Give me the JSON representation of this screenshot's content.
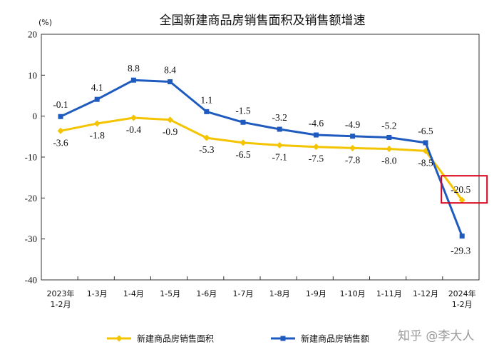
{
  "chart_data": {
    "type": "line",
    "title": "全国新建商品房销售面积及销售额增速",
    "unit": "(%)",
    "ylim": [
      -40,
      20
    ],
    "yticks": [
      20,
      10,
      0,
      -10,
      -20,
      -30,
      -40
    ],
    "categories": [
      [
        "2023年",
        "1-2月"
      ],
      [
        "1-3月"
      ],
      [
        "1-4月"
      ],
      [
        "1-5月"
      ],
      [
        "1-6月"
      ],
      [
        "1-7月"
      ],
      [
        "1-8月"
      ],
      [
        "1-9月"
      ],
      [
        "1-10月"
      ],
      [
        "1-11月"
      ],
      [
        "1-12月"
      ],
      [
        "2024年",
        "1-2月"
      ]
    ],
    "series": [
      {
        "name": "新建商品房销售面积",
        "color": "#f5c400",
        "marker": "diamond",
        "values": [
          -3.6,
          -1.8,
          -0.4,
          -0.9,
          -5.3,
          -6.5,
          -7.1,
          -7.5,
          -7.8,
          -8.0,
          -8.5,
          -20.5
        ],
        "labels": [
          "-3.6",
          "-1.8",
          "-0.4",
          "-0.9",
          "-5.3",
          "-6.5",
          "-7.1",
          "-7.5",
          "-7.8",
          "-8.0",
          "-8.5",
          "-20.5"
        ]
      },
      {
        "name": "新建商品房销售额",
        "color": "#1f5bbf",
        "marker": "square",
        "values": [
          -0.1,
          4.1,
          8.8,
          8.4,
          1.1,
          -1.5,
          -3.2,
          -4.6,
          -4.9,
          -5.2,
          -6.5,
          -29.3
        ],
        "labels": [
          "-0.1",
          "4.1",
          "8.8",
          "8.4",
          "1.1",
          "-1.5",
          "-3.2",
          "-4.6",
          "-4.9",
          "-5.2",
          "-6.5",
          "-29.3"
        ]
      }
    ],
    "legend_position": "bottom",
    "grid": false,
    "highlight": {
      "series": 0,
      "index": 11,
      "color": "#d9001b"
    }
  },
  "watermark": "知乎 @李大人"
}
